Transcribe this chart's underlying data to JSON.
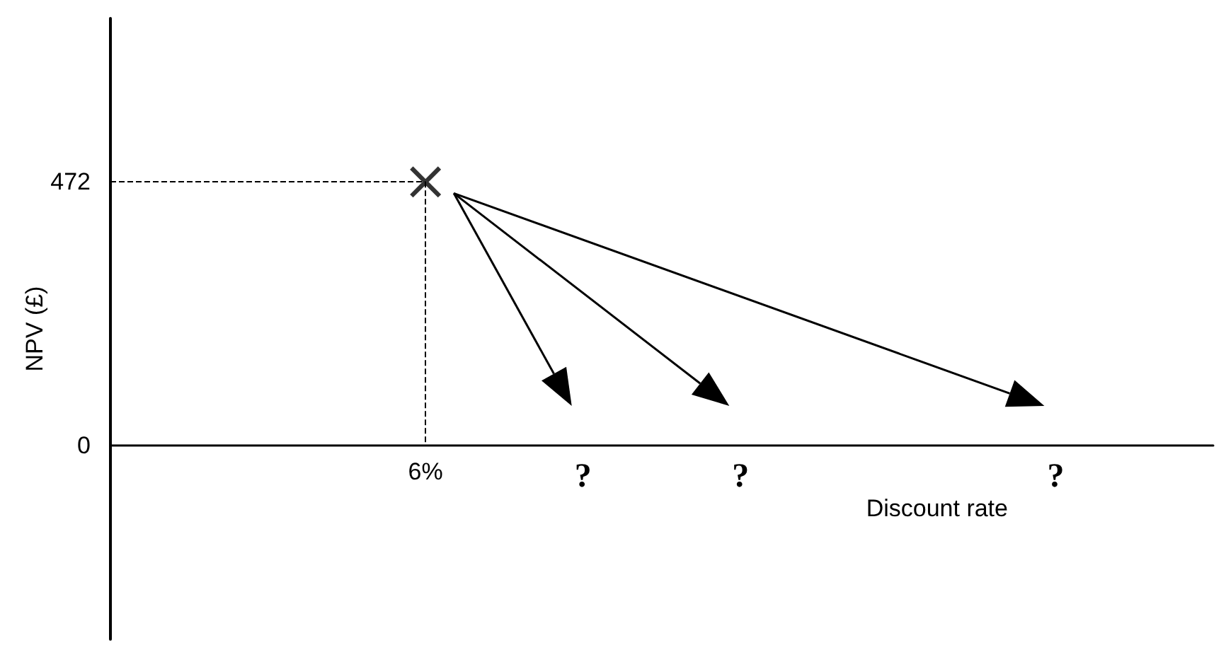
{
  "chart_data": {
    "type": "scatter",
    "xlabel": "Discount rate",
    "ylabel": "NPV (£)",
    "categories": [
      null,
      null,
      "6%",
      "?",
      "?",
      null,
      "?",
      null
    ],
    "values": [
      null,
      null,
      472,
      null,
      null,
      null,
      null,
      null
    ],
    "color": "#000000",
    "marker": "cross",
    "ref_lines": [
      {
        "axis": "y",
        "value": 472,
        "color": "#000000",
        "line_style": "dashed"
      }
    ],
    "ylim": [
      -347,
      765
    ],
    "yticks": [
      0,
      472
    ],
    "grid": false
  }
}
